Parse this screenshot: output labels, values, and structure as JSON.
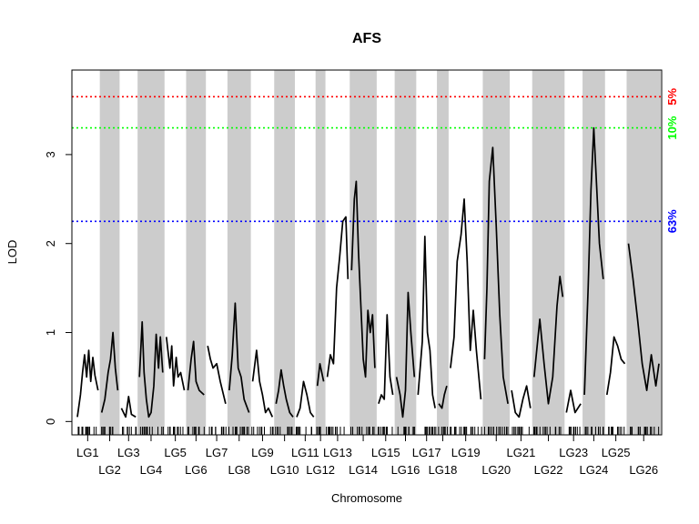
{
  "chart_data": {
    "type": "line",
    "title": "AFS",
    "xlabel": "Chromosome",
    "ylabel": "LOD",
    "ylim": [
      -0.15,
      3.95
    ],
    "yticks": [
      0,
      1,
      2,
      3
    ],
    "chromosomes": [
      {
        "name": "LG1",
        "length": 27
      },
      {
        "name": "LG2",
        "length": 22
      },
      {
        "name": "LG3",
        "length": 20
      },
      {
        "name": "LG4",
        "length": 30
      },
      {
        "name": "LG5",
        "length": 24
      },
      {
        "name": "LG6",
        "length": 22
      },
      {
        "name": "LG7",
        "length": 24
      },
      {
        "name": "LG8",
        "length": 26
      },
      {
        "name": "LG9",
        "length": 26
      },
      {
        "name": "LG10",
        "length": 23
      },
      {
        "name": "LG11",
        "length": 23
      },
      {
        "name": "LG12",
        "length": 11
      },
      {
        "name": "LG13",
        "length": 27
      },
      {
        "name": "LG14",
        "length": 30
      },
      {
        "name": "LG15",
        "length": 20
      },
      {
        "name": "LG16",
        "length": 24
      },
      {
        "name": "LG17",
        "length": 23
      },
      {
        "name": "LG18",
        "length": 13
      },
      {
        "name": "LG19",
        "length": 38
      },
      {
        "name": "LG20",
        "length": 30
      },
      {
        "name": "LG21",
        "length": 25
      },
      {
        "name": "LG22",
        "length": 36
      },
      {
        "name": "LG23",
        "length": 20
      },
      {
        "name": "LG24",
        "length": 25
      },
      {
        "name": "LG25",
        "length": 24
      },
      {
        "name": "LG26",
        "length": 38
      }
    ],
    "series": [
      {
        "chromosome_profiles": [
          [
            [
              0,
              0.05
            ],
            [
              0.15,
              0.3
            ],
            [
              0.25,
              0.55
            ],
            [
              0.35,
              0.75
            ],
            [
              0.45,
              0.5
            ],
            [
              0.55,
              0.8
            ],
            [
              0.65,
              0.45
            ],
            [
              0.75,
              0.72
            ],
            [
              0.85,
              0.52
            ],
            [
              1,
              0.35
            ]
          ],
          [
            [
              0,
              0.1
            ],
            [
              0.2,
              0.25
            ],
            [
              0.4,
              0.55
            ],
            [
              0.55,
              0.7
            ],
            [
              0.7,
              1.0
            ],
            [
              0.85,
              0.6
            ],
            [
              1,
              0.35
            ]
          ],
          [
            [
              0,
              0.15
            ],
            [
              0.3,
              0.05
            ],
            [
              0.5,
              0.28
            ],
            [
              0.7,
              0.08
            ],
            [
              1,
              0.05
            ]
          ],
          [
            [
              0,
              0.5
            ],
            [
              0.12,
              1.12
            ],
            [
              0.2,
              0.55
            ],
            [
              0.3,
              0.25
            ],
            [
              0.4,
              0.05
            ],
            [
              0.5,
              0.1
            ],
            [
              0.62,
              0.4
            ],
            [
              0.72,
              0.98
            ],
            [
              0.82,
              0.6
            ],
            [
              0.9,
              0.95
            ],
            [
              1,
              0.55
            ]
          ],
          [
            [
              0,
              0.95
            ],
            [
              0.2,
              0.6
            ],
            [
              0.3,
              0.85
            ],
            [
              0.4,
              0.4
            ],
            [
              0.55,
              0.72
            ],
            [
              0.65,
              0.5
            ],
            [
              0.8,
              0.55
            ],
            [
              1,
              0.35
            ]
          ],
          [
            [
              0,
              0.35
            ],
            [
              0.2,
              0.7
            ],
            [
              0.35,
              0.9
            ],
            [
              0.5,
              0.45
            ],
            [
              0.7,
              0.35
            ],
            [
              1,
              0.3
            ]
          ],
          [
            [
              0,
              0.85
            ],
            [
              0.15,
              0.7
            ],
            [
              0.3,
              0.6
            ],
            [
              0.5,
              0.65
            ],
            [
              0.7,
              0.45
            ],
            [
              1,
              0.2
            ]
          ],
          [
            [
              0,
              0.35
            ],
            [
              0.15,
              0.75
            ],
            [
              0.3,
              1.33
            ],
            [
              0.45,
              0.6
            ],
            [
              0.6,
              0.5
            ],
            [
              0.75,
              0.25
            ],
            [
              1,
              0.1
            ]
          ],
          [
            [
              0,
              0.45
            ],
            [
              0.2,
              0.8
            ],
            [
              0.35,
              0.45
            ],
            [
              0.5,
              0.3
            ],
            [
              0.65,
              0.1
            ],
            [
              0.8,
              0.15
            ],
            [
              1,
              0.05
            ]
          ],
          [
            [
              0,
              0.2
            ],
            [
              0.15,
              0.35
            ],
            [
              0.3,
              0.58
            ],
            [
              0.45,
              0.4
            ],
            [
              0.6,
              0.25
            ],
            [
              0.8,
              0.1
            ],
            [
              1,
              0.05
            ]
          ],
          [
            [
              0,
              0.05
            ],
            [
              0.2,
              0.15
            ],
            [
              0.4,
              0.45
            ],
            [
              0.6,
              0.3
            ],
            [
              0.8,
              0.1
            ],
            [
              1,
              0.05
            ]
          ],
          [
            [
              0,
              0.4
            ],
            [
              0.4,
              0.65
            ],
            [
              1,
              0.45
            ]
          ],
          [
            [
              0,
              0.5
            ],
            [
              0.15,
              0.75
            ],
            [
              0.3,
              0.65
            ],
            [
              0.45,
              1.5
            ],
            [
              0.6,
              1.85
            ],
            [
              0.75,
              2.25
            ],
            [
              0.9,
              2.3
            ],
            [
              1,
              1.6
            ]
          ],
          [
            [
              0,
              1.7
            ],
            [
              0.12,
              2.5
            ],
            [
              0.2,
              2.7
            ],
            [
              0.3,
              1.9
            ],
            [
              0.4,
              1.3
            ],
            [
              0.5,
              0.7
            ],
            [
              0.6,
              0.5
            ],
            [
              0.7,
              1.25
            ],
            [
              0.8,
              1.0
            ],
            [
              0.9,
              1.2
            ],
            [
              1,
              0.6
            ]
          ],
          [
            [
              0,
              0.2
            ],
            [
              0.2,
              0.3
            ],
            [
              0.4,
              0.25
            ],
            [
              0.6,
              1.2
            ],
            [
              0.8,
              0.5
            ],
            [
              1,
              0.3
            ]
          ],
          [
            [
              0,
              0.5
            ],
            [
              0.2,
              0.3
            ],
            [
              0.35,
              0.05
            ],
            [
              0.5,
              0.35
            ],
            [
              0.65,
              1.45
            ],
            [
              0.8,
              1.0
            ],
            [
              1,
              0.5
            ]
          ],
          [
            [
              0,
              0.3
            ],
            [
              0.25,
              0.9
            ],
            [
              0.4,
              2.08
            ],
            [
              0.55,
              1.0
            ],
            [
              0.7,
              0.8
            ],
            [
              0.85,
              0.3
            ],
            [
              1,
              0.15
            ]
          ],
          [
            [
              0,
              0.2
            ],
            [
              0.4,
              0.15
            ],
            [
              0.7,
              0.3
            ],
            [
              1,
              0.4
            ]
          ],
          [
            [
              0,
              0.6
            ],
            [
              0.12,
              0.95
            ],
            [
              0.22,
              1.8
            ],
            [
              0.35,
              2.1
            ],
            [
              0.45,
              2.5
            ],
            [
              0.55,
              1.8
            ],
            [
              0.65,
              0.8
            ],
            [
              0.75,
              1.25
            ],
            [
              0.85,
              0.8
            ],
            [
              1,
              0.25
            ]
          ],
          [
            [
              0,
              0.7
            ],
            [
              0.1,
              1.5
            ],
            [
              0.2,
              2.7
            ],
            [
              0.35,
              3.08
            ],
            [
              0.5,
              2.2
            ],
            [
              0.65,
              1.2
            ],
            [
              0.8,
              0.5
            ],
            [
              1,
              0.2
            ]
          ],
          [
            [
              0,
              0.35
            ],
            [
              0.2,
              0.1
            ],
            [
              0.4,
              0.05
            ],
            [
              0.6,
              0.25
            ],
            [
              0.8,
              0.4
            ],
            [
              1,
              0.15
            ]
          ],
          [
            [
              0,
              0.5
            ],
            [
              0.2,
              1.15
            ],
            [
              0.35,
              0.65
            ],
            [
              0.5,
              0.2
            ],
            [
              0.65,
              0.5
            ],
            [
              0.8,
              1.3
            ],
            [
              0.9,
              1.63
            ],
            [
              1,
              1.4
            ]
          ],
          [
            [
              0,
              0.1
            ],
            [
              0.3,
              0.35
            ],
            [
              0.6,
              0.1
            ],
            [
              1,
              0.2
            ]
          ],
          [
            [
              0,
              0.3
            ],
            [
              0.2,
              1.5
            ],
            [
              0.35,
              2.6
            ],
            [
              0.5,
              3.3
            ],
            [
              0.65,
              2.65
            ],
            [
              0.8,
              2.0
            ],
            [
              1,
              1.6
            ]
          ],
          [
            [
              0,
              0.3
            ],
            [
              0.2,
              0.55
            ],
            [
              0.4,
              0.95
            ],
            [
              0.6,
              0.85
            ],
            [
              0.8,
              0.7
            ],
            [
              1,
              0.65
            ]
          ],
          [
            [
              0,
              2.0
            ],
            [
              0.15,
              1.6
            ],
            [
              0.3,
              1.15
            ],
            [
              0.45,
              0.65
            ],
            [
              0.6,
              0.35
            ],
            [
              0.75,
              0.75
            ],
            [
              0.9,
              0.4
            ],
            [
              1,
              0.65
            ]
          ]
        ]
      }
    ],
    "thresholds": [
      {
        "label": "5%",
        "value": 3.65,
        "color": "#ff0000"
      },
      {
        "label": "10%",
        "value": 3.3,
        "color": "#00ff00"
      },
      {
        "label": "63%",
        "value": 2.25,
        "color": "#0000ff"
      }
    ],
    "colors": {
      "band": "#cccccc",
      "curve": "#000000",
      "axis": "#000000"
    },
    "grid": false,
    "alternating_chromosome_bands": true
  }
}
